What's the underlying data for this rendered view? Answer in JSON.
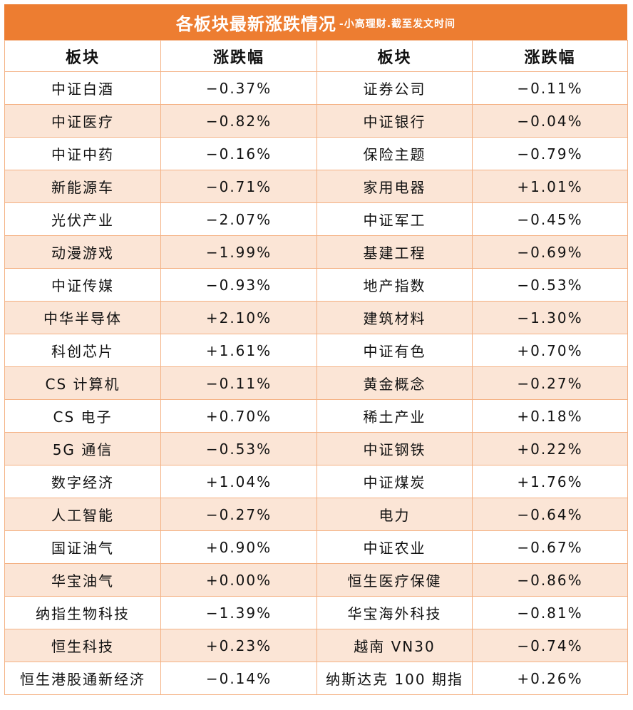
{
  "header": {
    "title": "各板块最新涨跌情况",
    "subtitle": "-小高理财.截至发文时间"
  },
  "columns": [
    "板块",
    "涨跌幅",
    "板块",
    "涨跌幅"
  ],
  "colors": {
    "accent": "#ED7D31",
    "row_alt": "#FBE5D6",
    "border": "#F4B183",
    "up": "#E00000",
    "down": "#16A34A"
  },
  "rows": [
    {
      "left_name": "中证白酒",
      "left_change": "−0.37%",
      "left_dir": "neg",
      "right_name": "证券公司",
      "right_change": "−0.11%",
      "right_dir": "neg"
    },
    {
      "left_name": "中证医疗",
      "left_change": "−0.82%",
      "left_dir": "neg",
      "right_name": "中证银行",
      "right_change": "−0.04%",
      "right_dir": "neg"
    },
    {
      "left_name": "中证中药",
      "left_change": "−0.16%",
      "left_dir": "neg",
      "right_name": "保险主题",
      "right_change": "−0.79%",
      "right_dir": "neg"
    },
    {
      "left_name": "新能源车",
      "left_change": "−0.71%",
      "left_dir": "neg",
      "right_name": "家用电器",
      "right_change": "+1.01%",
      "right_dir": "pos"
    },
    {
      "left_name": "光伏产业",
      "left_change": "−2.07%",
      "left_dir": "neg",
      "right_name": "中证军工",
      "right_change": "−0.45%",
      "right_dir": "neg"
    },
    {
      "left_name": "动漫游戏",
      "left_change": "−1.99%",
      "left_dir": "neg",
      "right_name": "基建工程",
      "right_change": "−0.69%",
      "right_dir": "neg"
    },
    {
      "left_name": "中证传媒",
      "left_change": "−0.93%",
      "left_dir": "neg",
      "right_name": "地产指数",
      "right_change": "−0.53%",
      "right_dir": "neg"
    },
    {
      "left_name": "中华半导体",
      "left_change": "+2.10%",
      "left_dir": "pos",
      "right_name": "建筑材料",
      "right_change": "−1.30%",
      "right_dir": "neg"
    },
    {
      "left_name": "科创芯片",
      "left_change": "+1.61%",
      "left_dir": "pos",
      "right_name": "中证有色",
      "right_change": "+0.70%",
      "right_dir": "pos"
    },
    {
      "left_name": "CS 计算机",
      "left_change": "−0.11%",
      "left_dir": "neg",
      "right_name": "黄金概念",
      "right_change": "−0.27%",
      "right_dir": "neg"
    },
    {
      "left_name": "CS 电子",
      "left_change": "+0.70%",
      "left_dir": "pos",
      "right_name": "稀土产业",
      "right_change": "+0.18%",
      "right_dir": "pos"
    },
    {
      "left_name": "5G 通信",
      "left_change": "−0.53%",
      "left_dir": "neg",
      "right_name": "中证钢铁",
      "right_change": "+0.22%",
      "right_dir": "pos"
    },
    {
      "left_name": "数字经济",
      "left_change": "+1.04%",
      "left_dir": "pos",
      "right_name": "中证煤炭",
      "right_change": "+1.76%",
      "right_dir": "pos"
    },
    {
      "left_name": "人工智能",
      "left_change": "−0.27%",
      "left_dir": "neg",
      "right_name": "电力",
      "right_change": "−0.64%",
      "right_dir": "neg"
    },
    {
      "left_name": "国证油气",
      "left_change": "+0.90%",
      "left_dir": "pos",
      "right_name": "中证农业",
      "right_change": "−0.67%",
      "right_dir": "neg"
    },
    {
      "left_name": "华宝油气",
      "left_change": "+0.00%",
      "left_dir": "neu",
      "right_name": "恒生医疗保健",
      "right_change": "−0.86%",
      "right_dir": "neg"
    },
    {
      "left_name": "纳指生物科技",
      "left_change": "−1.39%",
      "left_dir": "neg",
      "right_name": "华宝海外科技",
      "right_change": "−0.81%",
      "right_dir": "neg"
    },
    {
      "left_name": "恒生科技",
      "left_change": "+0.23%",
      "left_dir": "pos",
      "right_name": "越南 VN30",
      "right_change": "−0.74%",
      "right_dir": "neg"
    },
    {
      "left_name": "恒生港股通新经济",
      "left_change": "−0.14%",
      "left_dir": "neg",
      "right_name": "纳斯达克 100 期指",
      "right_change": "+0.26%",
      "right_dir": "pos"
    }
  ]
}
